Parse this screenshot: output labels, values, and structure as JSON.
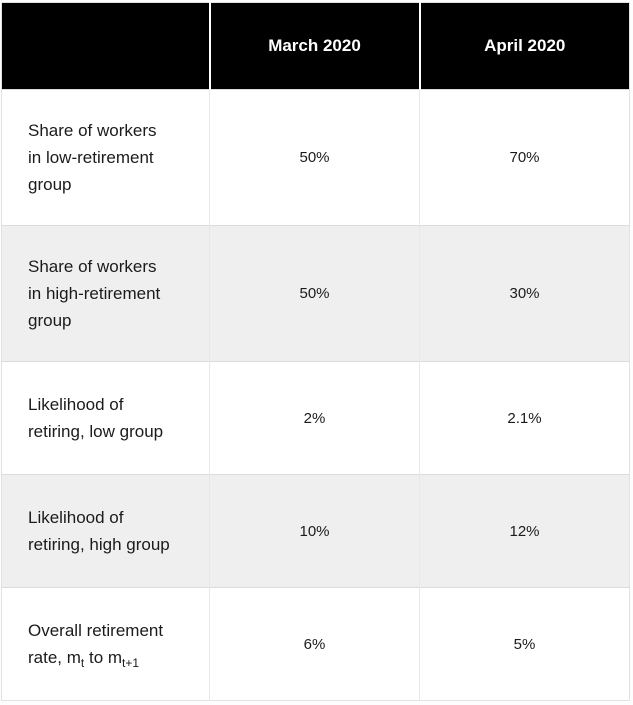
{
  "colors": {
    "header_bg": "#000000",
    "header_text": "#ffffff",
    "shaded_row_bg": "#efefef",
    "row_divider": "#dcdcdc",
    "body_text": "#1b1b1b"
  },
  "table": {
    "columns": [
      "March 2020",
      "April 2020"
    ],
    "rows": [
      {
        "label": "Share of workers\nin low-retirement\ngroup",
        "march": "50%",
        "april": "70%",
        "shaded": false
      },
      {
        "label": "Share of workers\nin high-retirement\ngroup",
        "march": "50%",
        "april": "30%",
        "shaded": true
      },
      {
        "label": "Likelihood of\nretiring, low group",
        "march": "2%",
        "april": "2.1%",
        "shaded": false
      },
      {
        "label": "Likelihood of\nretiring, high group",
        "march": "10%",
        "april": "12%",
        "shaded": true
      },
      {
        "label_parts": {
          "before": "Overall retirement\nrate, m",
          "sub1": "t",
          "middle": " to m",
          "sub2": "t+1"
        },
        "march": "6%",
        "april": "5%",
        "shaded": false
      }
    ]
  },
  "chart_data": {
    "type": "table",
    "columns": [
      "",
      "March 2020",
      "April 2020"
    ],
    "rows": [
      {
        "label": "Share of workers in low-retirement group",
        "march_2020": "50%",
        "april_2020": "70%"
      },
      {
        "label": "Share of workers in high-retirement group",
        "march_2020": "50%",
        "april_2020": "30%"
      },
      {
        "label": "Likelihood of retiring, low group",
        "march_2020": "2%",
        "april_2020": "2.1%"
      },
      {
        "label": "Likelihood of retiring, high group",
        "march_2020": "10%",
        "april_2020": "12%"
      },
      {
        "label": "Overall retirement rate, m_t to m_t+1",
        "march_2020": "6%",
        "april_2020": "5%"
      }
    ]
  }
}
